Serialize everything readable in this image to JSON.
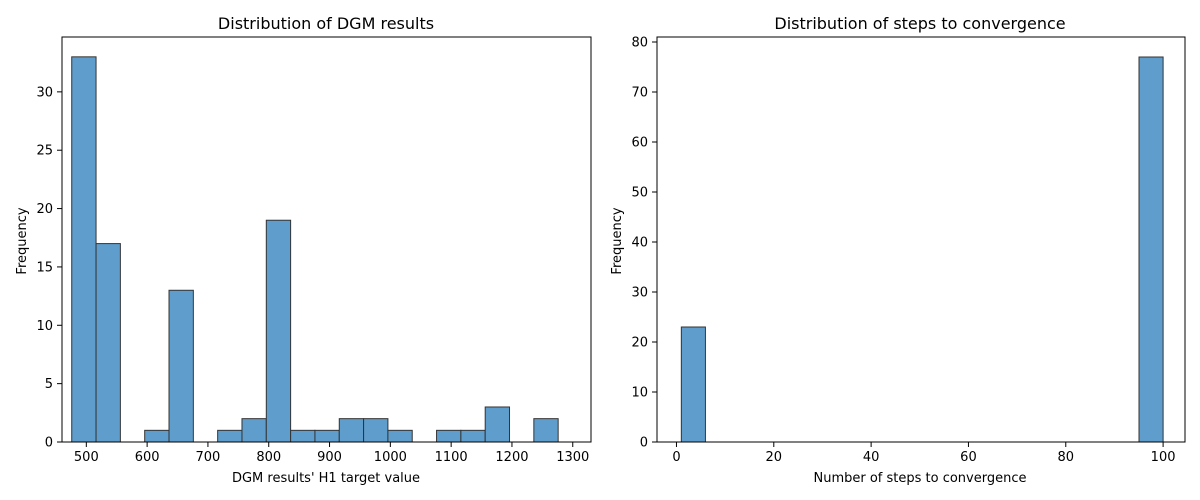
{
  "chart_data": [
    {
      "type": "bar",
      "title": "Distribution of DGM results",
      "xlabel": "DGM results' H1 target value",
      "ylabel": "Frequency",
      "xlim": [
        460,
        1330
      ],
      "ylim": [
        0,
        34.7
      ],
      "xticks": [
        500,
        600,
        700,
        800,
        900,
        1000,
        1100,
        1200,
        1300
      ],
      "yticks": [
        0,
        5,
        10,
        15,
        20,
        25,
        30
      ],
      "bin_width": 40,
      "bin_edges": [
        476,
        516,
        556,
        596,
        636,
        676,
        716,
        756,
        796,
        836,
        876,
        916,
        956,
        996,
        1036,
        1076,
        1116,
        1156,
        1196,
        1236,
        1276
      ],
      "values": [
        33,
        17,
        0,
        1,
        13,
        0,
        1,
        2,
        19,
        1,
        1,
        2,
        2,
        1,
        0,
        1,
        1,
        3,
        0,
        2
      ],
      "color": "#5f9ecc",
      "edgecolor": "#333333",
      "grid": false
    },
    {
      "type": "bar",
      "title": "Distribution of steps to convergence",
      "xlabel": "Number of steps to convergence",
      "ylabel": "Frequency",
      "xlim": [
        -4,
        104.5
      ],
      "ylim": [
        0,
        81
      ],
      "xticks": [
        0,
        20,
        40,
        60,
        80,
        100
      ],
      "yticks": [
        0,
        10,
        20,
        30,
        40,
        50,
        60,
        70,
        80
      ],
      "bin_width": 4.95,
      "bin_edges": [
        1,
        5.95,
        95.05,
        100
      ],
      "values": [
        23,
        0,
        77
      ],
      "color": "#5f9ecc",
      "edgecolor": "#333333",
      "grid": false
    }
  ]
}
